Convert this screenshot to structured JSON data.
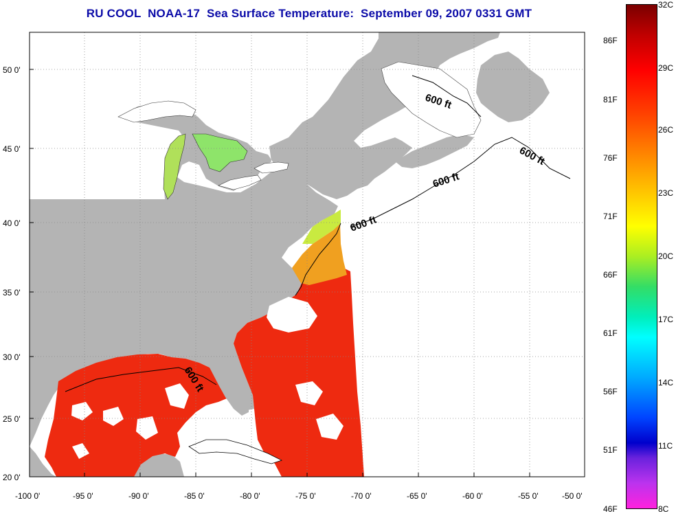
{
  "title": "RU COOL  NOAA-17  Sea Surface Temperature:  September 09, 2007 0331 GMT",
  "colors": {
    "land": "#b4b4b4",
    "no_data": "#ffffff",
    "title": "#0a0aa8",
    "warm_sst": "#ee2a10"
  },
  "axes": {
    "x_ticks": [
      "-100 0'",
      "-95 0'",
      "-90 0'",
      "-85 0'",
      "-80 0'",
      "-75 0'",
      "-70 0'",
      "-65 0'",
      "-60 0'",
      "-55 0'",
      "-50 0'"
    ],
    "y_ticks": [
      "50 0'",
      "45 0'",
      "40 0'",
      "35 0'",
      "30 0'",
      "25 0'",
      "20 0'"
    ],
    "lon_range": [
      -100,
      -50
    ],
    "lat_range": [
      20,
      52
    ]
  },
  "contours": [
    {
      "label": "600 ft"
    },
    {
      "label": "600 ft"
    },
    {
      "label": "600 ft"
    },
    {
      "label": "600 ft"
    },
    {
      "label": "600 ft"
    }
  ],
  "colorbar": {
    "celsius": [
      "32C",
      "29C",
      "26C",
      "23C",
      "20C",
      "17C",
      "14C",
      "11C",
      "8C"
    ],
    "fahrenheit": [
      "86F",
      "81F",
      "76F",
      "71F",
      "66F",
      "61F",
      "56F",
      "51F",
      "46F"
    ]
  }
}
